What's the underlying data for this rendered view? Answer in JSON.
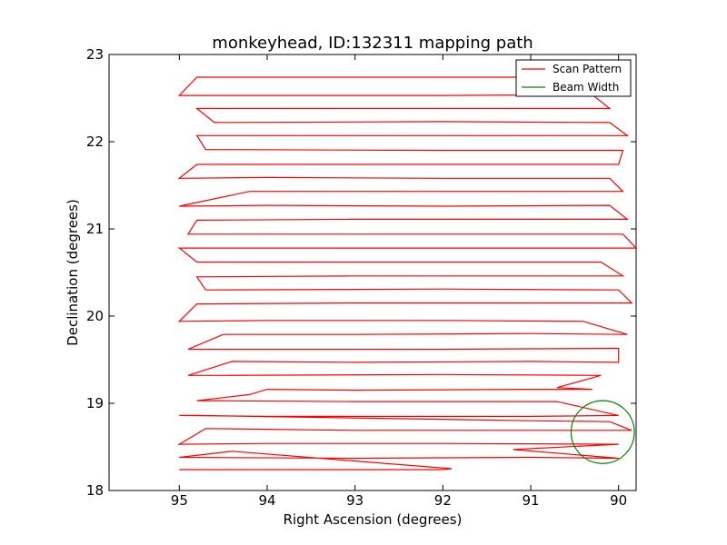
{
  "chart_data": {
    "type": "line",
    "title": "monkeyhead, ID:132311 mapping path",
    "xlabel": "Right Ascension (degrees)",
    "ylabel": "Declination (degrees)",
    "xlim": [
      95.8,
      89.8
    ],
    "ylim": [
      18,
      23
    ],
    "x_inverted": true,
    "xticks": [
      95,
      94,
      93,
      92,
      91,
      90
    ],
    "xtick_labels": [
      "95",
      "94",
      "93",
      "92",
      "91",
      "90"
    ],
    "yticks": [
      18,
      19,
      20,
      21,
      22,
      23
    ],
    "ytick_labels": [
      "18",
      "19",
      "20",
      "21",
      "22",
      "23"
    ],
    "grid": false,
    "legend_position": "top-right",
    "series": [
      {
        "name": "Scan Pattern",
        "color": "#ff0000",
        "points": [
          [
            95.0,
            18.24
          ],
          [
            94.0,
            18.24
          ],
          [
            93.0,
            18.24
          ],
          [
            92.0,
            18.24
          ],
          [
            91.9,
            18.25
          ],
          [
            94.4,
            18.45
          ],
          [
            95.0,
            18.38
          ],
          [
            93.0,
            18.37
          ],
          [
            91.0,
            18.38
          ],
          [
            90.0,
            18.37
          ],
          [
            91.2,
            18.47
          ],
          [
            90.0,
            18.53
          ],
          [
            92.0,
            18.54
          ],
          [
            94.0,
            18.54
          ],
          [
            95.0,
            18.53
          ],
          [
            94.7,
            18.71
          ],
          [
            93.0,
            18.69
          ],
          [
            91.0,
            18.69
          ],
          [
            89.85,
            18.69
          ],
          [
            90.1,
            18.79
          ],
          [
            91.0,
            18.8
          ],
          [
            94.8,
            18.86
          ],
          [
            95.0,
            18.86
          ],
          [
            94.0,
            18.85
          ],
          [
            93.0,
            18.85
          ],
          [
            91.0,
            18.85
          ],
          [
            90.0,
            18.86
          ],
          [
            90.7,
            19.02
          ],
          [
            93.0,
            19.02
          ],
          [
            94.8,
            19.03
          ],
          [
            94.2,
            19.1
          ],
          [
            94.0,
            19.16
          ],
          [
            93.0,
            19.15
          ],
          [
            91.0,
            19.16
          ],
          [
            90.3,
            19.16
          ],
          [
            90.7,
            19.18
          ],
          [
            90.2,
            19.32
          ],
          [
            92.0,
            19.33
          ],
          [
            94.5,
            19.32
          ],
          [
            94.9,
            19.32
          ],
          [
            94.4,
            19.48
          ],
          [
            93.0,
            19.47
          ],
          [
            91.0,
            19.48
          ],
          [
            90.0,
            19.47
          ],
          [
            90.0,
            19.63
          ],
          [
            92.0,
            19.62
          ],
          [
            94.6,
            19.62
          ],
          [
            94.9,
            19.62
          ],
          [
            94.5,
            19.79
          ],
          [
            93.0,
            19.79
          ],
          [
            91.0,
            19.8
          ],
          [
            89.9,
            19.79
          ],
          [
            90.4,
            19.94
          ],
          [
            92.0,
            19.95
          ],
          [
            94.0,
            19.95
          ],
          [
            95.0,
            19.94
          ],
          [
            94.8,
            20.14
          ],
          [
            93.0,
            20.15
          ],
          [
            91.0,
            20.15
          ],
          [
            89.85,
            20.15
          ],
          [
            90.0,
            20.3
          ],
          [
            92.0,
            20.31
          ],
          [
            94.7,
            20.3
          ],
          [
            94.8,
            20.45
          ],
          [
            93.0,
            20.46
          ],
          [
            91.0,
            20.46
          ],
          [
            89.95,
            20.46
          ],
          [
            90.2,
            20.62
          ],
          [
            92.0,
            20.62
          ],
          [
            94.8,
            20.62
          ],
          [
            95.0,
            20.78
          ],
          [
            93.0,
            20.78
          ],
          [
            91.0,
            20.78
          ],
          [
            89.8,
            20.78
          ],
          [
            89.95,
            20.94
          ],
          [
            92.0,
            20.94
          ],
          [
            94.4,
            20.94
          ],
          [
            94.9,
            20.94
          ],
          [
            94.8,
            21.1
          ],
          [
            93.0,
            21.11
          ],
          [
            91.0,
            21.11
          ],
          [
            89.9,
            21.11
          ],
          [
            90.1,
            21.27
          ],
          [
            92.0,
            21.26
          ],
          [
            94.0,
            21.27
          ],
          [
            95.0,
            21.26
          ],
          [
            94.2,
            21.43
          ],
          [
            93.0,
            21.43
          ],
          [
            91.0,
            21.43
          ],
          [
            89.95,
            21.43
          ],
          [
            90.1,
            21.58
          ],
          [
            92.0,
            21.58
          ],
          [
            94.0,
            21.59
          ],
          [
            95.0,
            21.58
          ],
          [
            94.8,
            21.74
          ],
          [
            93.0,
            21.74
          ],
          [
            91.0,
            21.74
          ],
          [
            90.0,
            21.74
          ],
          [
            89.95,
            21.9
          ],
          [
            92.0,
            21.9
          ],
          [
            94.7,
            21.91
          ],
          [
            94.8,
            22.07
          ],
          [
            93.0,
            22.07
          ],
          [
            91.0,
            22.07
          ],
          [
            89.9,
            22.07
          ],
          [
            90.1,
            22.22
          ],
          [
            92.0,
            22.23
          ],
          [
            94.6,
            22.22
          ],
          [
            94.8,
            22.38
          ],
          [
            93.0,
            22.38
          ],
          [
            91.0,
            22.38
          ],
          [
            90.1,
            22.38
          ],
          [
            90.3,
            22.54
          ],
          [
            92.0,
            22.53
          ],
          [
            94.5,
            22.53
          ],
          [
            95.0,
            22.53
          ],
          [
            94.8,
            22.74
          ],
          [
            93.0,
            22.74
          ],
          [
            91.0,
            22.74
          ],
          [
            90.2,
            22.74
          ],
          [
            90.0,
            22.74
          ]
        ]
      },
      {
        "name": "Beam Width",
        "color": "#008000",
        "circle": {
          "center_ra": 90.18,
          "center_dec": 18.67,
          "radius_deg": 0.36
        }
      }
    ]
  }
}
